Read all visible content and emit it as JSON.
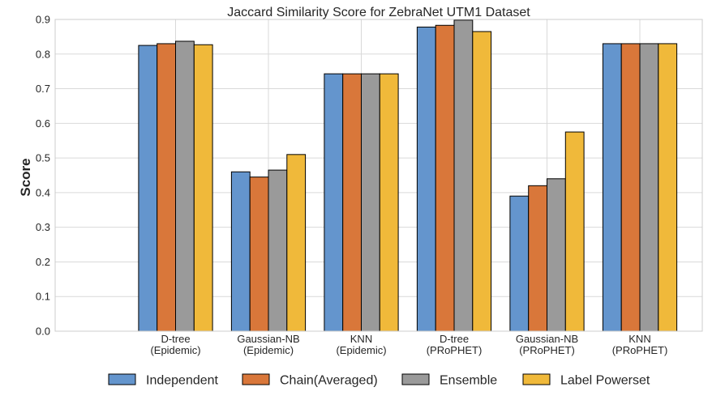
{
  "chart_data": {
    "type": "bar",
    "title": "Jaccard Similarity Score for ZebraNet UTM1 Dataset",
    "xlabel": "",
    "ylabel": "Score",
    "ylim": [
      0,
      0.9
    ],
    "yticks": [
      "0.0",
      "0.1",
      "0.2",
      "0.3",
      "0.4",
      "0.5",
      "0.6",
      "0.7",
      "0.8",
      "0.9"
    ],
    "grid": true,
    "legend_position": "bottom",
    "categories": [
      [
        "D-tree",
        "(Epidemic)"
      ],
      [
        "Gaussian-NB",
        "(Epidemic)"
      ],
      [
        "KNN",
        "(Epidemic)"
      ],
      [
        "D-tree",
        "(PRoPHET)"
      ],
      [
        "Gaussian-NB",
        "(PRoPHET)"
      ],
      [
        "KNN",
        "(PRoPHET)"
      ]
    ],
    "series": [
      {
        "name": "Independent",
        "color": "#6495cd",
        "values": [
          0.825,
          0.46,
          0.743,
          0.878,
          0.39,
          0.83
        ]
      },
      {
        "name": "Chain(Averaged)",
        "color": "#d9773a",
        "values": [
          0.83,
          0.445,
          0.743,
          0.883,
          0.42,
          0.83
        ]
      },
      {
        "name": "Ensemble",
        "color": "#9a9a9a",
        "values": [
          0.837,
          0.465,
          0.743,
          0.898,
          0.44,
          0.83
        ]
      },
      {
        "name": "Label Powerset",
        "color": "#f0b93a",
        "values": [
          0.827,
          0.51,
          0.743,
          0.865,
          0.575,
          0.83
        ]
      }
    ]
  }
}
